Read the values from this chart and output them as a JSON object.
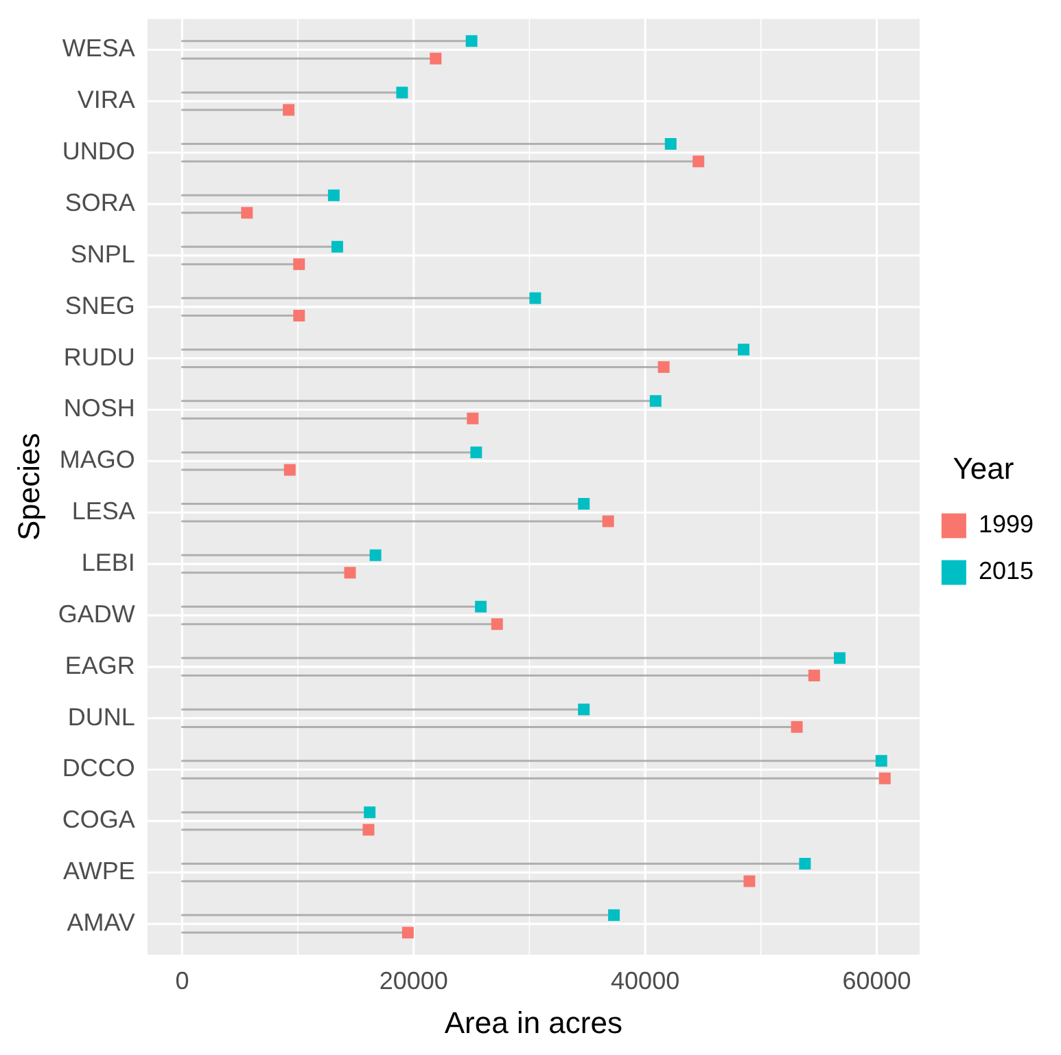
{
  "chart_data": {
    "type": "lollipop",
    "orientation": "horizontal",
    "xlabel": "Area in acres",
    "ylabel": "Species",
    "legend_title": "Year",
    "legend": "right",
    "grid": true,
    "marker": "square",
    "categories": [
      "WESA",
      "VIRA",
      "UNDO",
      "SORA",
      "SNPL",
      "SNEG",
      "RUDU",
      "NOSH",
      "MAGO",
      "LESA",
      "LEBI",
      "GADW",
      "EAGR",
      "DUNL",
      "DCCO",
      "COGA",
      "AWPE",
      "AMAV"
    ],
    "xlim": [
      -3000,
      63700
    ],
    "xticks": [
      0,
      20000,
      40000,
      60000
    ],
    "series": [
      {
        "name": "1999",
        "color": "#f8766d",
        "values": [
          21900,
          9200,
          44600,
          5600,
          10100,
          10100,
          41600,
          25100,
          9300,
          36800,
          14500,
          27200,
          54600,
          53100,
          60700,
          16100,
          49000,
          19500
        ]
      },
      {
        "name": "2015",
        "color": "#00bfc4",
        "values": [
          25000,
          19000,
          42200,
          13100,
          13400,
          30500,
          48500,
          40900,
          25400,
          34700,
          16700,
          25800,
          56800,
          34700,
          60400,
          16200,
          53800,
          37300
        ]
      }
    ]
  }
}
